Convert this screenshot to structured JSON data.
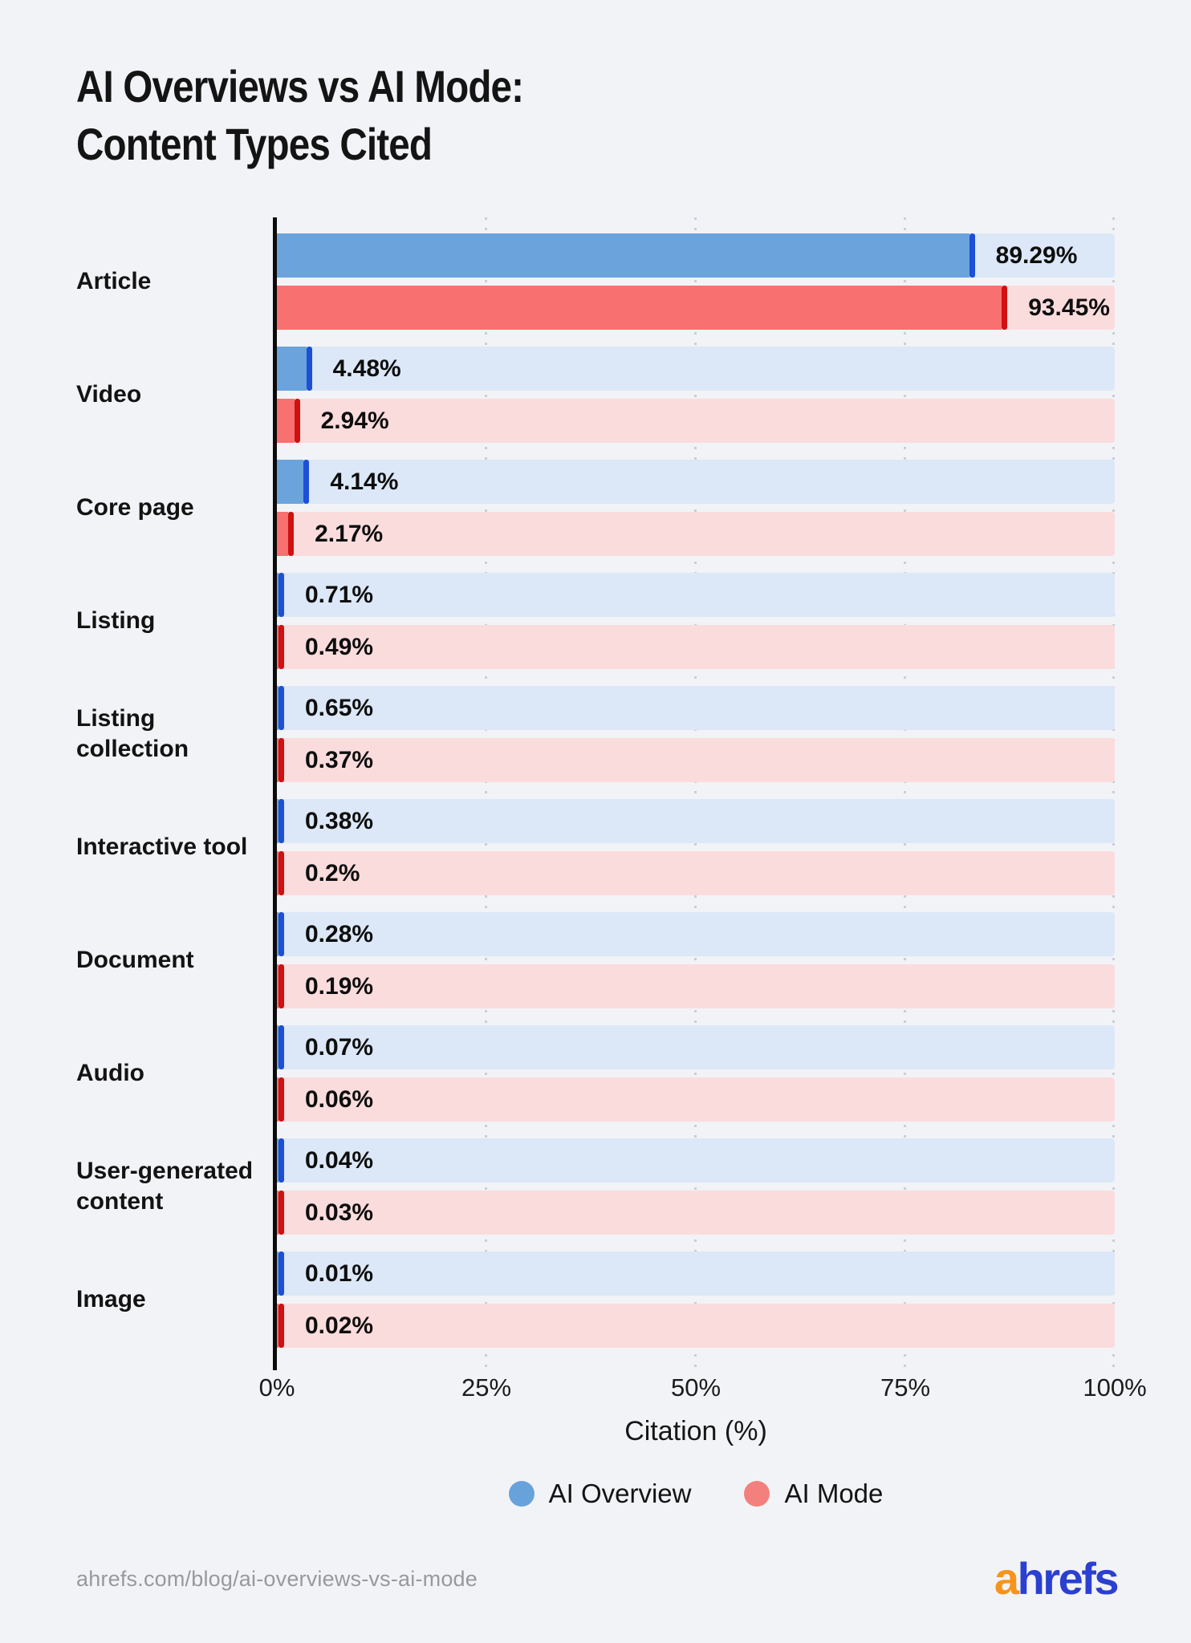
{
  "title": {
    "line1": "AI Overviews vs AI Mode:",
    "line2": "Content Types Cited"
  },
  "chart_data": {
    "type": "bar",
    "orientation": "horizontal",
    "title": "AI Overviews vs AI Mode: Content Types Cited",
    "xlabel": "Citation (%)",
    "xlim": [
      0,
      100
    ],
    "x_ticks": [
      "0%",
      "25%",
      "50%",
      "75%",
      "100%"
    ],
    "grid": "dotted-vertical",
    "legend_position": "bottom-center",
    "categories": [
      "Article",
      "Video",
      "Core page",
      "Listing",
      "Listing collection",
      "Interactive tool",
      "Document",
      "Audio",
      "User-generated content",
      "Image"
    ],
    "series": [
      {
        "name": "AI Overview",
        "color": "#6ba4dc",
        "cap_color": "#1d4fd7",
        "track_color": "#dce8f7",
        "values": [
          89.29,
          4.48,
          4.14,
          0.71,
          0.65,
          0.38,
          0.28,
          0.07,
          0.04,
          0.01
        ],
        "labels": [
          "89.29%",
          "4.48%",
          "4.14%",
          "0.71%",
          "0.65%",
          "0.38%",
          "0.28%",
          "0.07%",
          "0.04%",
          "0.01%"
        ]
      },
      {
        "name": "AI Mode",
        "color": "#f87070",
        "cap_color": "#cf1111",
        "track_color": "#fbdcdd",
        "values": [
          93.45,
          2.94,
          2.17,
          0.49,
          0.37,
          0.2,
          0.19,
          0.06,
          0.03,
          0.02
        ],
        "labels": [
          "93.45%",
          "2.94%",
          "2.17%",
          "0.49%",
          "0.37%",
          "0.2%",
          "0.19%",
          "0.06%",
          "0.03%",
          "0.02%"
        ]
      }
    ]
  },
  "legend": {
    "items": [
      {
        "label": "AI Overview",
        "color": "#68a2da"
      },
      {
        "label": "AI Mode",
        "color": "#f3807c"
      }
    ]
  },
  "footer": {
    "source_url": "ahrefs.com/blog/ai-overviews-vs-ai-mode",
    "logo_part1": "a",
    "logo_part2": "hrefs"
  },
  "colors": {
    "background": "#f2f3f6",
    "axis": "#0b0b0b",
    "gridline": "#c9ced6",
    "text": "#141414",
    "source_text": "#98999d",
    "logo_orange": "#f7941d",
    "logo_blue": "#2b3fd1"
  }
}
